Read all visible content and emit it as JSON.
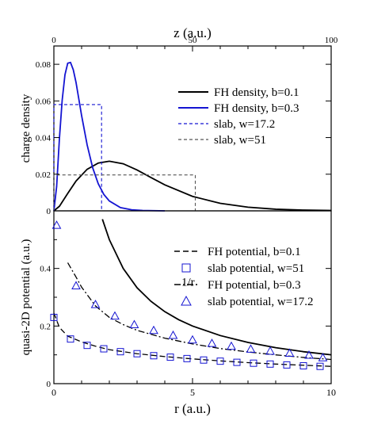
{
  "colors": {
    "black": "#000000",
    "blue": "#1414d2",
    "gray": "#555555"
  },
  "chart_data": [
    {
      "type": "line",
      "top_axis": {
        "label": "z (a.u.)",
        "lim": [
          0,
          100
        ],
        "ticks": [
          "0",
          "50",
          "100"
        ]
      },
      "ylabel": "charge density",
      "ylim": [
        0,
        0.09
      ],
      "yticks": [
        "0",
        "0.02",
        "0.04",
        "0.06",
        "0.08"
      ],
      "grid": false,
      "legend_position": "right",
      "series": [
        {
          "name": "FH density, b=0.1",
          "color": "#000000",
          "dash": "solid",
          "x": [
            0,
            2,
            5,
            8,
            12,
            16,
            20,
            25,
            30,
            35,
            40,
            50,
            60,
            70,
            80,
            90,
            100
          ],
          "y": [
            0,
            0.0025,
            0.0095,
            0.0163,
            0.0227,
            0.0261,
            0.0271,
            0.0257,
            0.0223,
            0.0182,
            0.0142,
            0.0079,
            0.0041,
            0.002,
            0.0009,
            0.0004,
            0.0002
          ]
        },
        {
          "name": "FH density, b=0.3",
          "color": "#1414d2",
          "dash": "solid",
          "x": [
            0,
            1,
            2,
            3,
            4,
            5,
            6,
            7,
            8,
            9,
            10,
            12,
            14,
            16,
            18,
            20,
            24,
            28,
            32,
            36,
            40
          ],
          "y": [
            0,
            0.0133,
            0.0395,
            0.0605,
            0.0743,
            0.0806,
            0.081,
            0.077,
            0.07,
            0.061,
            0.052,
            0.036,
            0.0235,
            0.0148,
            0.009,
            0.0054,
            0.0018,
            0.0006,
            0.0002,
            0.0001,
            0
          ]
        },
        {
          "name": "slab, w=17.2",
          "color": "#1414d2",
          "dash": "dashed",
          "x": [
            0,
            0,
            17.2,
            17.2
          ],
          "y": [
            0,
            0.058,
            0.058,
            0
          ]
        },
        {
          "name": "slab, w=51",
          "color": "#555555",
          "dash": "dashed",
          "x": [
            0,
            0,
            51,
            51
          ],
          "y": [
            0,
            0.0196,
            0.0196,
            0
          ]
        }
      ]
    },
    {
      "type": "line",
      "xlabel": "r (a.u.)",
      "xlim": [
        0,
        10
      ],
      "xticks": [
        "0",
        "5",
        "10"
      ],
      "ylabel": "quasi-2D potential (a.u.)",
      "ylim": [
        0,
        0.6
      ],
      "yticks": [
        "0",
        "0.2",
        "0.4"
      ],
      "grid": false,
      "legend_position": "right",
      "annotations": [
        {
          "text": "1/r",
          "x": 4.6,
          "y": 0.34
        }
      ],
      "series": [
        {
          "name": "1/r",
          "color": "#000000",
          "dash": "solid",
          "x": [
            1.75,
            2,
            2.5,
            3,
            3.5,
            4,
            4.5,
            5,
            6,
            7,
            8,
            9,
            10
          ],
          "y": [
            0.571,
            0.5,
            0.4,
            0.333,
            0.286,
            0.25,
            0.222,
            0.2,
            0.167,
            0.143,
            0.125,
            0.111,
            0.1
          ]
        },
        {
          "name": "FH potential, b=0.1",
          "color": "#000000",
          "dash": "dashed",
          "x": [
            0,
            0.2,
            0.5,
            1,
            1.5,
            2,
            3,
            4,
            5,
            6,
            7,
            8,
            9,
            10
          ],
          "y": [
            0.245,
            0.195,
            0.165,
            0.145,
            0.13,
            0.118,
            0.104,
            0.094,
            0.086,
            0.079,
            0.073,
            0.068,
            0.064,
            0.06
          ]
        },
        {
          "name": "slab potential, w=51",
          "color": "#1414d2",
          "dash": "none",
          "marker": "square",
          "x": [
            0,
            0.6,
            1.2,
            1.8,
            2.4,
            3.0,
            3.6,
            4.2,
            4.8,
            5.4,
            6.0,
            6.6,
            7.2,
            7.8,
            8.4,
            9.0,
            9.6
          ],
          "y": [
            0.23,
            0.155,
            0.133,
            0.121,
            0.111,
            0.104,
            0.097,
            0.092,
            0.087,
            0.082,
            0.078,
            0.074,
            0.071,
            0.068,
            0.065,
            0.062,
            0.06
          ]
        },
        {
          "name": "FH potential, b=0.3",
          "color": "#000000",
          "dash": "dashdot",
          "x": [
            0.5,
            0.8,
            1,
            1.5,
            2,
            2.5,
            3,
            4,
            5,
            6,
            7,
            8,
            9,
            10
          ],
          "y": [
            0.42,
            0.37,
            0.335,
            0.27,
            0.23,
            0.205,
            0.185,
            0.158,
            0.138,
            0.122,
            0.11,
            0.1,
            0.091,
            0.084
          ]
        },
        {
          "name": "slab potential, w=17.2",
          "color": "#1414d2",
          "dash": "none",
          "marker": "triangle",
          "x": [
            0.1,
            0.8,
            1.5,
            2.2,
            2.9,
            3.6,
            4.3,
            5.0,
            5.7,
            6.4,
            7.1,
            7.8,
            8.5,
            9.2,
            9.7
          ],
          "y": [
            0.55,
            0.34,
            0.275,
            0.235,
            0.205,
            0.185,
            0.168,
            0.152,
            0.14,
            0.13,
            0.12,
            0.113,
            0.106,
            0.099,
            0.09
          ]
        }
      ]
    }
  ]
}
